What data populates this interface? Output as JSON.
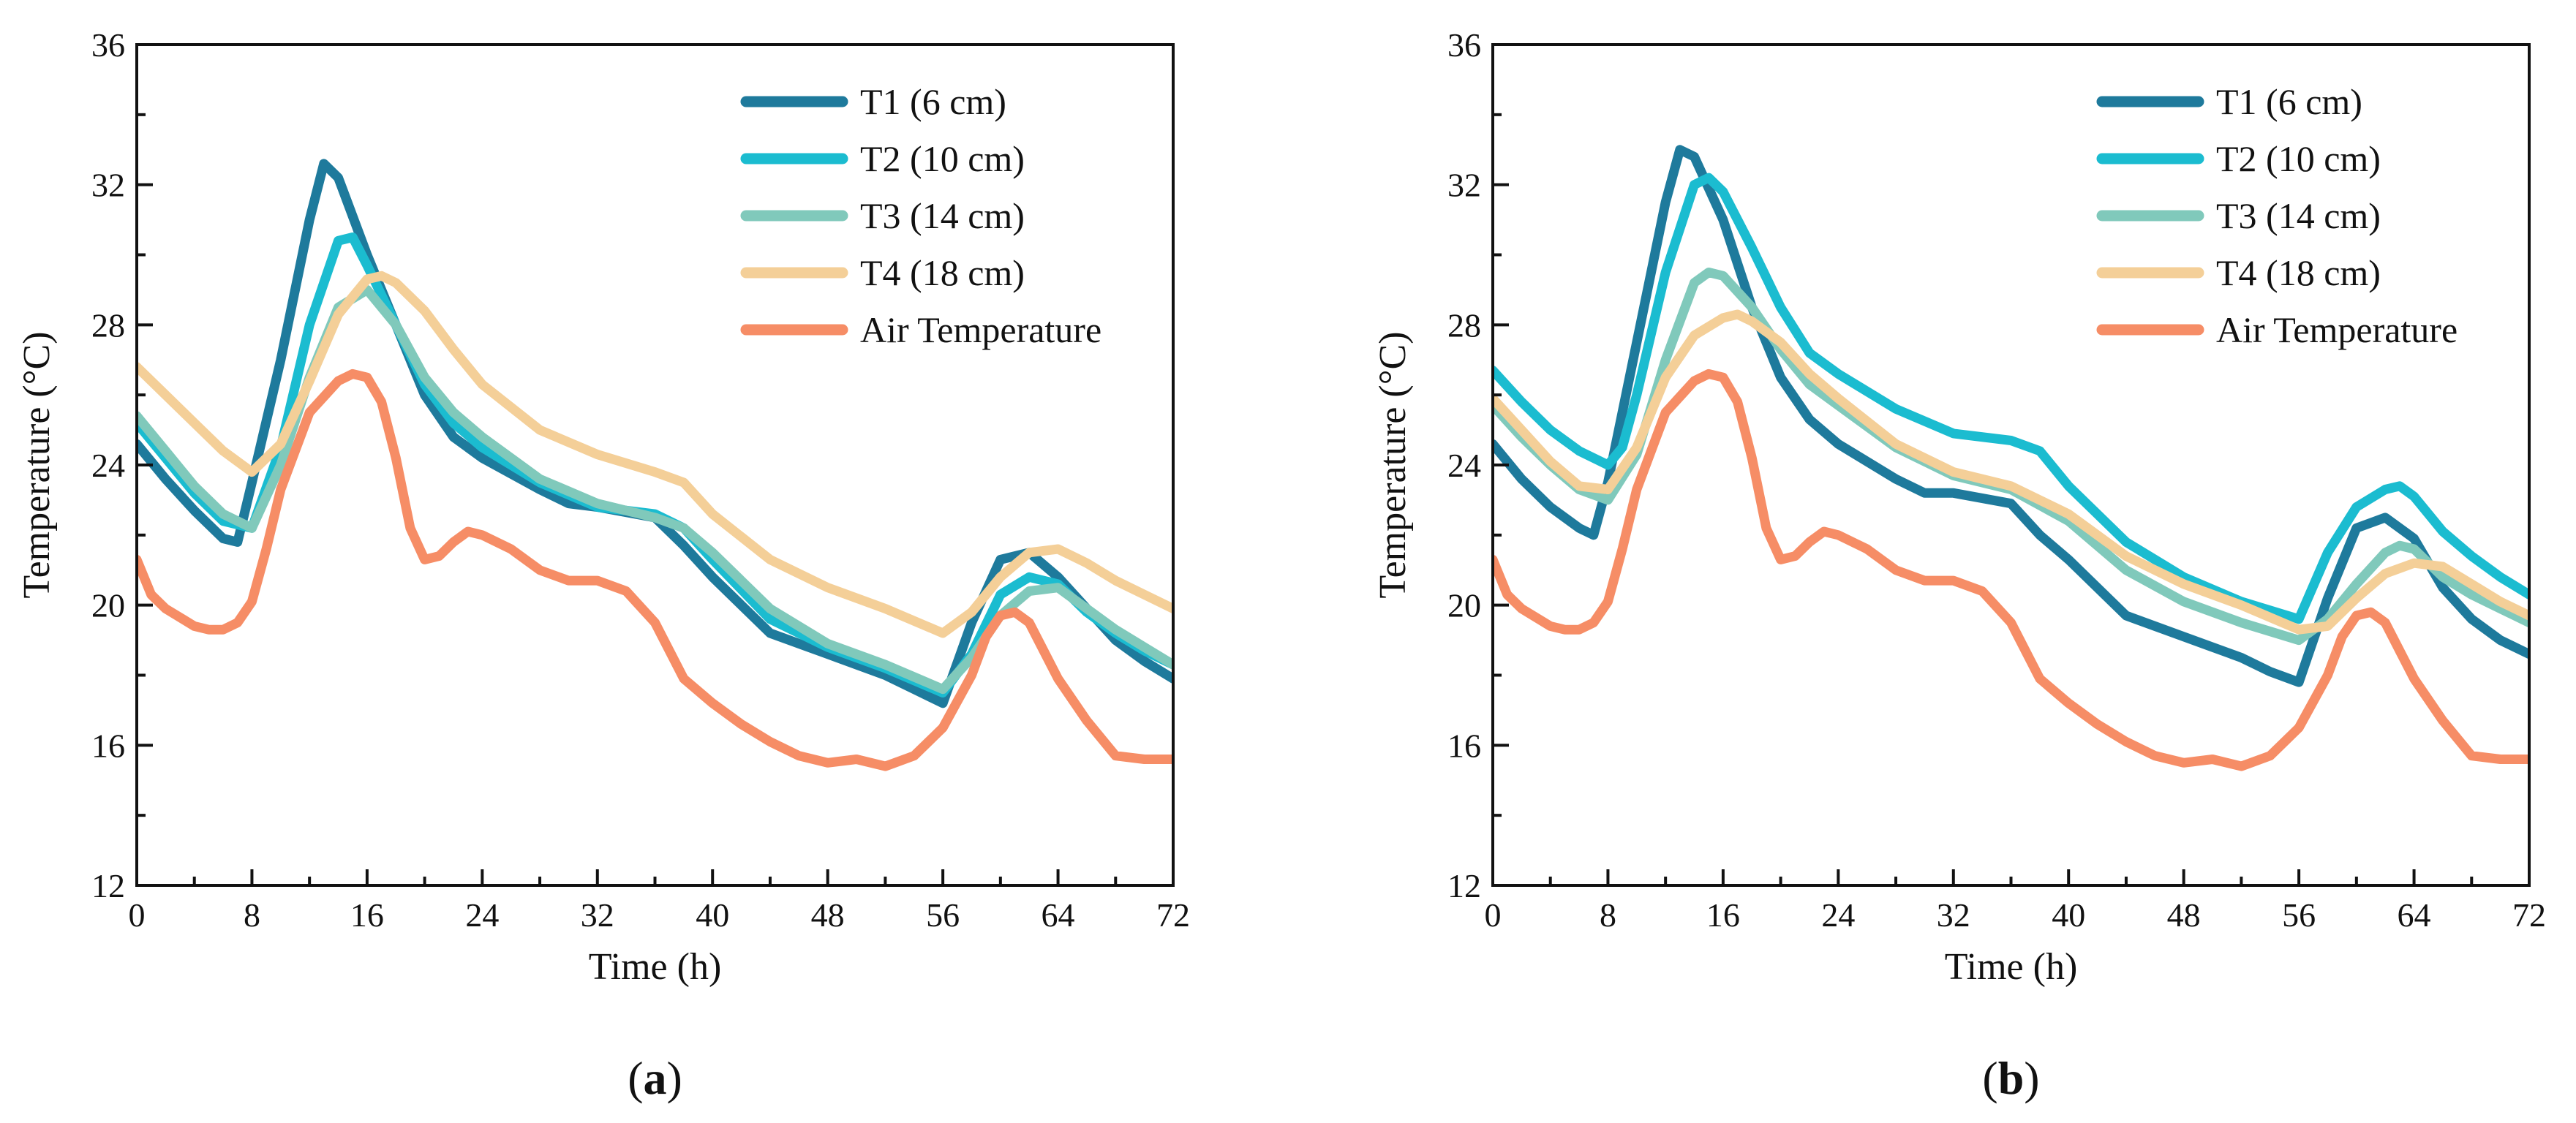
{
  "figure": {
    "series_colors": {
      "T1": "#1e7a9c",
      "T2": "#1bbcd0",
      "T3": "#80c9bb",
      "T4": "#f4cf98",
      "Air": "#f68d66"
    }
  },
  "chart_data": [
    {
      "type": "line",
      "panel_label": "a",
      "xlabel": "Time (h)",
      "ylabel": "Temperature (°C)",
      "xlim": [
        0,
        72
      ],
      "ylim": [
        12,
        36
      ],
      "xticks": [
        0,
        8,
        16,
        24,
        32,
        40,
        48,
        56,
        64,
        72
      ],
      "yticks": [
        12,
        16,
        20,
        24,
        28,
        32,
        36
      ],
      "legend_position": "top-right",
      "series": [
        {
          "key": "T1",
          "name": "T1 (6 cm)",
          "color": "#1e7a9c",
          "x": [
            0,
            2,
            4,
            6,
            7,
            8,
            10,
            12,
            13,
            14,
            16,
            18,
            20,
            22,
            24,
            28,
            30,
            32,
            36,
            38,
            40,
            44,
            48,
            52,
            54,
            56,
            58,
            60,
            62,
            64,
            66,
            68,
            70,
            72
          ],
          "y": [
            24.6,
            23.6,
            22.7,
            21.9,
            21.8,
            23.5,
            27.0,
            31.0,
            32.6,
            32.2,
            30.0,
            28.0,
            26.0,
            24.8,
            24.2,
            23.3,
            22.9,
            22.8,
            22.5,
            21.7,
            20.8,
            19.2,
            18.6,
            18.0,
            17.6,
            17.2,
            19.5,
            21.3,
            21.5,
            20.8,
            19.9,
            19.0,
            18.4,
            17.9
          ]
        },
        {
          "key": "T2",
          "name": "T2 (10 cm)",
          "color": "#1bbcd0",
          "x": [
            0,
            2,
            4,
            6,
            8,
            10,
            12,
            14,
            15,
            16,
            18,
            20,
            22,
            24,
            28,
            32,
            36,
            38,
            40,
            44,
            48,
            52,
            56,
            58,
            60,
            62,
            64,
            66,
            68,
            70,
            72
          ],
          "y": [
            25.2,
            24.2,
            23.2,
            22.4,
            22.2,
            24.5,
            28.0,
            30.4,
            30.5,
            29.7,
            28.0,
            26.3,
            25.2,
            24.5,
            23.5,
            22.8,
            22.6,
            22.2,
            21.3,
            19.6,
            18.8,
            18.2,
            17.5,
            18.6,
            20.3,
            20.8,
            20.6,
            19.8,
            19.2,
            18.7,
            18.3
          ]
        },
        {
          "key": "T3",
          "name": "T3 (14 cm)",
          "color": "#80c9bb",
          "x": [
            0,
            2,
            4,
            6,
            8,
            10,
            12,
            14,
            16,
            18,
            20,
            22,
            24,
            28,
            32,
            36,
            38,
            40,
            44,
            48,
            52,
            56,
            58,
            60,
            62,
            64,
            66,
            68,
            70,
            72
          ],
          "y": [
            25.4,
            24.4,
            23.4,
            22.6,
            22.2,
            24.0,
            26.5,
            28.5,
            29.0,
            28.0,
            26.5,
            25.5,
            24.8,
            23.6,
            22.9,
            22.5,
            22.2,
            21.5,
            19.9,
            18.9,
            18.3,
            17.6,
            18.5,
            19.7,
            20.4,
            20.5,
            19.9,
            19.3,
            18.8,
            18.3
          ]
        },
        {
          "key": "T4",
          "name": "T4 (18 cm)",
          "color": "#f4cf98",
          "x": [
            0,
            2,
            4,
            6,
            8,
            10,
            12,
            14,
            16,
            17,
            18,
            20,
            22,
            24,
            28,
            32,
            36,
            38,
            40,
            44,
            48,
            52,
            56,
            58,
            60,
            62,
            64,
            66,
            68,
            70,
            72
          ],
          "y": [
            26.8,
            26.0,
            25.2,
            24.4,
            23.8,
            24.6,
            26.4,
            28.3,
            29.3,
            29.4,
            29.2,
            28.4,
            27.3,
            26.3,
            25.0,
            24.3,
            23.8,
            23.5,
            22.6,
            21.3,
            20.5,
            19.9,
            19.2,
            19.8,
            20.8,
            21.5,
            21.6,
            21.2,
            20.7,
            20.3,
            19.9
          ]
        },
        {
          "key": "Air",
          "name": "Air Temperature",
          "color": "#f68d66",
          "x": [
            0,
            1,
            2,
            4,
            5,
            6,
            7,
            8,
            9,
            10,
            12,
            14,
            15,
            16,
            17,
            18,
            19,
            20,
            21,
            22,
            23,
            24,
            26,
            28,
            30,
            32,
            34,
            36,
            38,
            40,
            42,
            44,
            46,
            48,
            50,
            52,
            54,
            56,
            58,
            59,
            60,
            61,
            62,
            63,
            64,
            66,
            68,
            70,
            72
          ],
          "y": [
            21.3,
            20.3,
            19.9,
            19.4,
            19.3,
            19.3,
            19.5,
            20.1,
            21.6,
            23.3,
            25.5,
            26.4,
            26.6,
            26.5,
            25.8,
            24.2,
            22.2,
            21.3,
            21.4,
            21.8,
            22.1,
            22.0,
            21.6,
            21.0,
            20.7,
            20.7,
            20.4,
            19.5,
            17.9,
            17.2,
            16.6,
            16.1,
            15.7,
            15.5,
            15.6,
            15.4,
            15.7,
            16.5,
            18.0,
            19.1,
            19.7,
            19.8,
            19.5,
            18.7,
            17.9,
            16.7,
            15.7,
            15.6,
            15.6
          ]
        }
      ]
    },
    {
      "type": "line",
      "panel_label": "b",
      "xlabel": "Time (h)",
      "ylabel": "Temperature (°C)",
      "xlim": [
        0,
        72
      ],
      "ylim": [
        12,
        36
      ],
      "xticks": [
        0,
        8,
        16,
        24,
        32,
        40,
        48,
        56,
        64,
        72
      ],
      "yticks": [
        12,
        16,
        20,
        24,
        28,
        32,
        36
      ],
      "legend_position": "top-right",
      "series": [
        {
          "key": "T1",
          "name": "T1 (6 cm)",
          "color": "#1e7a9c",
          "x": [
            0,
            2,
            4,
            6,
            7,
            8,
            10,
            12,
            13,
            14,
            16,
            18,
            20,
            22,
            24,
            28,
            30,
            32,
            36,
            38,
            40,
            44,
            48,
            52,
            54,
            56,
            58,
            60,
            62,
            64,
            66,
            68,
            70,
            72
          ],
          "y": [
            24.6,
            23.6,
            22.8,
            22.2,
            22.0,
            23.5,
            27.5,
            31.5,
            33.0,
            32.8,
            31.0,
            28.5,
            26.5,
            25.3,
            24.6,
            23.6,
            23.2,
            23.2,
            22.9,
            22.0,
            21.3,
            19.7,
            19.1,
            18.5,
            18.1,
            17.8,
            20.2,
            22.2,
            22.5,
            21.9,
            20.5,
            19.6,
            19.0,
            18.6
          ]
        },
        {
          "key": "T2",
          "name": "T2 (10 cm)",
          "color": "#1bbcd0",
          "x": [
            0,
            2,
            4,
            6,
            8,
            9,
            10,
            12,
            14,
            15,
            16,
            18,
            20,
            22,
            24,
            28,
            32,
            36,
            38,
            40,
            44,
            48,
            52,
            56,
            58,
            60,
            62,
            63,
            64,
            66,
            68,
            70,
            72
          ],
          "y": [
            26.7,
            25.8,
            25.0,
            24.4,
            24.0,
            24.5,
            26.0,
            29.5,
            32.0,
            32.2,
            31.8,
            30.2,
            28.5,
            27.2,
            26.6,
            25.6,
            24.9,
            24.7,
            24.4,
            23.4,
            21.8,
            20.8,
            20.1,
            19.6,
            21.5,
            22.8,
            23.3,
            23.4,
            23.1,
            22.1,
            21.4,
            20.8,
            20.3
          ]
        },
        {
          "key": "T3",
          "name": "T3 (14 cm)",
          "color": "#80c9bb",
          "x": [
            0,
            2,
            4,
            6,
            8,
            10,
            12,
            14,
            15,
            16,
            18,
            20,
            22,
            24,
            28,
            32,
            36,
            40,
            44,
            48,
            52,
            56,
            58,
            60,
            62,
            63,
            64,
            66,
            68,
            70,
            72
          ],
          "y": [
            25.7,
            24.8,
            24.0,
            23.3,
            23.0,
            24.3,
            27.0,
            29.2,
            29.5,
            29.4,
            28.5,
            27.3,
            26.3,
            25.7,
            24.5,
            23.7,
            23.3,
            22.4,
            21.0,
            20.1,
            19.5,
            19.0,
            19.6,
            20.6,
            21.5,
            21.7,
            21.6,
            20.8,
            20.3,
            19.9,
            19.5
          ]
        },
        {
          "key": "T4",
          "name": "T4 (18 cm)",
          "color": "#f4cf98",
          "x": [
            0,
            2,
            4,
            6,
            8,
            10,
            12,
            14,
            16,
            17,
            18,
            20,
            22,
            24,
            28,
            32,
            36,
            40,
            44,
            48,
            52,
            56,
            58,
            60,
            62,
            64,
            66,
            68,
            70,
            72
          ],
          "y": [
            25.9,
            25.0,
            24.1,
            23.4,
            23.3,
            24.5,
            26.5,
            27.7,
            28.2,
            28.3,
            28.1,
            27.5,
            26.6,
            25.9,
            24.6,
            23.8,
            23.4,
            22.6,
            21.4,
            20.6,
            20.0,
            19.3,
            19.4,
            20.2,
            20.9,
            21.2,
            21.1,
            20.6,
            20.1,
            19.7
          ]
        },
        {
          "key": "Air",
          "name": "Air Temperature",
          "color": "#f68d66",
          "x": [
            0,
            1,
            2,
            4,
            5,
            6,
            7,
            8,
            9,
            10,
            12,
            14,
            15,
            16,
            17,
            18,
            19,
            20,
            21,
            22,
            23,
            24,
            26,
            28,
            30,
            32,
            34,
            36,
            38,
            40,
            42,
            44,
            46,
            48,
            50,
            52,
            54,
            56,
            58,
            59,
            60,
            61,
            62,
            63,
            64,
            66,
            68,
            70,
            72
          ],
          "y": [
            21.3,
            20.3,
            19.9,
            19.4,
            19.3,
            19.3,
            19.5,
            20.1,
            21.6,
            23.3,
            25.5,
            26.4,
            26.6,
            26.5,
            25.8,
            24.2,
            22.2,
            21.3,
            21.4,
            21.8,
            22.1,
            22.0,
            21.6,
            21.0,
            20.7,
            20.7,
            20.4,
            19.5,
            17.9,
            17.2,
            16.6,
            16.1,
            15.7,
            15.5,
            15.6,
            15.4,
            15.7,
            16.5,
            18.0,
            19.1,
            19.7,
            19.8,
            19.5,
            18.7,
            17.9,
            16.7,
            15.7,
            15.6,
            15.6
          ]
        }
      ]
    }
  ]
}
